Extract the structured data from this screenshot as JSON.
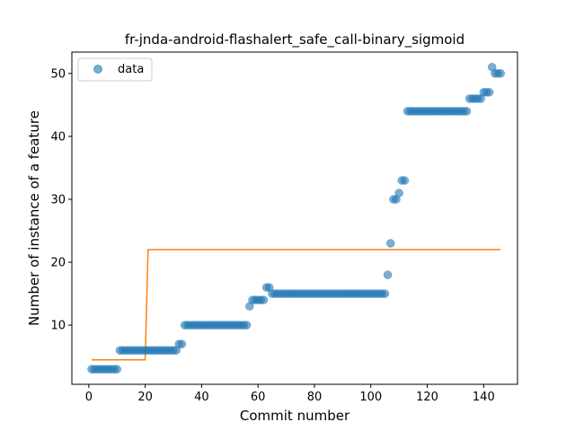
{
  "chart_data": {
    "type": "scatter",
    "title": "fr-jnda-android-flashalert_safe_call-binary_sigmoid",
    "xlabel": "Commit number",
    "ylabel": "Number of instance of a feature",
    "xlim": [
      -6,
      152
    ],
    "ylim": [
      0.6,
      53.4
    ],
    "xticks": [
      0,
      20,
      40,
      60,
      80,
      100,
      120,
      140
    ],
    "yticks": [
      10,
      20,
      30,
      40,
      50
    ],
    "grid": false,
    "legend_position": "top-left",
    "series": [
      {
        "name": "data",
        "kind": "scatter",
        "color": "#1f77b4",
        "points": [
          [
            1,
            3
          ],
          [
            2,
            3
          ],
          [
            3,
            3
          ],
          [
            4,
            3
          ],
          [
            5,
            3
          ],
          [
            6,
            3
          ],
          [
            7,
            3
          ],
          [
            8,
            3
          ],
          [
            9,
            3
          ],
          [
            10,
            3
          ],
          [
            11,
            6
          ],
          [
            12,
            6
          ],
          [
            13,
            6
          ],
          [
            14,
            6
          ],
          [
            15,
            6
          ],
          [
            16,
            6
          ],
          [
            17,
            6
          ],
          [
            18,
            6
          ],
          [
            19,
            6
          ],
          [
            20,
            6
          ],
          [
            21,
            6
          ],
          [
            22,
            6
          ],
          [
            23,
            6
          ],
          [
            24,
            6
          ],
          [
            25,
            6
          ],
          [
            26,
            6
          ],
          [
            27,
            6
          ],
          [
            28,
            6
          ],
          [
            29,
            6
          ],
          [
            30,
            6
          ],
          [
            31,
            6
          ],
          [
            32,
            7
          ],
          [
            33,
            7
          ],
          [
            34,
            10
          ],
          [
            35,
            10
          ],
          [
            36,
            10
          ],
          [
            37,
            10
          ],
          [
            38,
            10
          ],
          [
            39,
            10
          ],
          [
            40,
            10
          ],
          [
            41,
            10
          ],
          [
            42,
            10
          ],
          [
            43,
            10
          ],
          [
            44,
            10
          ],
          [
            45,
            10
          ],
          [
            46,
            10
          ],
          [
            47,
            10
          ],
          [
            48,
            10
          ],
          [
            49,
            10
          ],
          [
            50,
            10
          ],
          [
            51,
            10
          ],
          [
            52,
            10
          ],
          [
            53,
            10
          ],
          [
            54,
            10
          ],
          [
            55,
            10
          ],
          [
            56,
            10
          ],
          [
            57,
            13
          ],
          [
            58,
            14
          ],
          [
            59,
            14
          ],
          [
            60,
            14
          ],
          [
            61,
            14
          ],
          [
            62,
            14
          ],
          [
            63,
            16
          ],
          [
            64,
            16
          ],
          [
            65,
            15
          ],
          [
            66,
            15
          ],
          [
            67,
            15
          ],
          [
            68,
            15
          ],
          [
            69,
            15
          ],
          [
            70,
            15
          ],
          [
            71,
            15
          ],
          [
            72,
            15
          ],
          [
            73,
            15
          ],
          [
            74,
            15
          ],
          [
            75,
            15
          ],
          [
            76,
            15
          ],
          [
            77,
            15
          ],
          [
            78,
            15
          ],
          [
            79,
            15
          ],
          [
            80,
            15
          ],
          [
            81,
            15
          ],
          [
            82,
            15
          ],
          [
            83,
            15
          ],
          [
            84,
            15
          ],
          [
            85,
            15
          ],
          [
            86,
            15
          ],
          [
            87,
            15
          ],
          [
            88,
            15
          ],
          [
            89,
            15
          ],
          [
            90,
            15
          ],
          [
            91,
            15
          ],
          [
            92,
            15
          ],
          [
            93,
            15
          ],
          [
            94,
            15
          ],
          [
            95,
            15
          ],
          [
            96,
            15
          ],
          [
            97,
            15
          ],
          [
            98,
            15
          ],
          [
            99,
            15
          ],
          [
            100,
            15
          ],
          [
            101,
            15
          ],
          [
            102,
            15
          ],
          [
            103,
            15
          ],
          [
            104,
            15
          ],
          [
            105,
            15
          ],
          [
            106,
            18
          ],
          [
            107,
            23
          ],
          [
            108,
            30
          ],
          [
            109,
            30
          ],
          [
            110,
            31
          ],
          [
            111,
            33
          ],
          [
            112,
            33
          ],
          [
            113,
            44
          ],
          [
            114,
            44
          ],
          [
            115,
            44
          ],
          [
            116,
            44
          ],
          [
            117,
            44
          ],
          [
            118,
            44
          ],
          [
            119,
            44
          ],
          [
            120,
            44
          ],
          [
            121,
            44
          ],
          [
            122,
            44
          ],
          [
            123,
            44
          ],
          [
            124,
            44
          ],
          [
            125,
            44
          ],
          [
            126,
            44
          ],
          [
            127,
            44
          ],
          [
            128,
            44
          ],
          [
            129,
            44
          ],
          [
            130,
            44
          ],
          [
            131,
            44
          ],
          [
            132,
            44
          ],
          [
            133,
            44
          ],
          [
            134,
            44
          ],
          [
            135,
            46
          ],
          [
            136,
            46
          ],
          [
            137,
            46
          ],
          [
            138,
            46
          ],
          [
            139,
            46
          ],
          [
            140,
            47
          ],
          [
            141,
            47
          ],
          [
            142,
            47
          ],
          [
            143,
            51
          ],
          [
            144,
            50
          ],
          [
            145,
            50
          ],
          [
            146,
            50
          ]
        ]
      },
      {
        "kind": "line",
        "color": "#ff7f0e",
        "points": [
          [
            1,
            4.5
          ],
          [
            20,
            4.5
          ],
          [
            21,
            22
          ],
          [
            146,
            22
          ]
        ]
      }
    ]
  }
}
